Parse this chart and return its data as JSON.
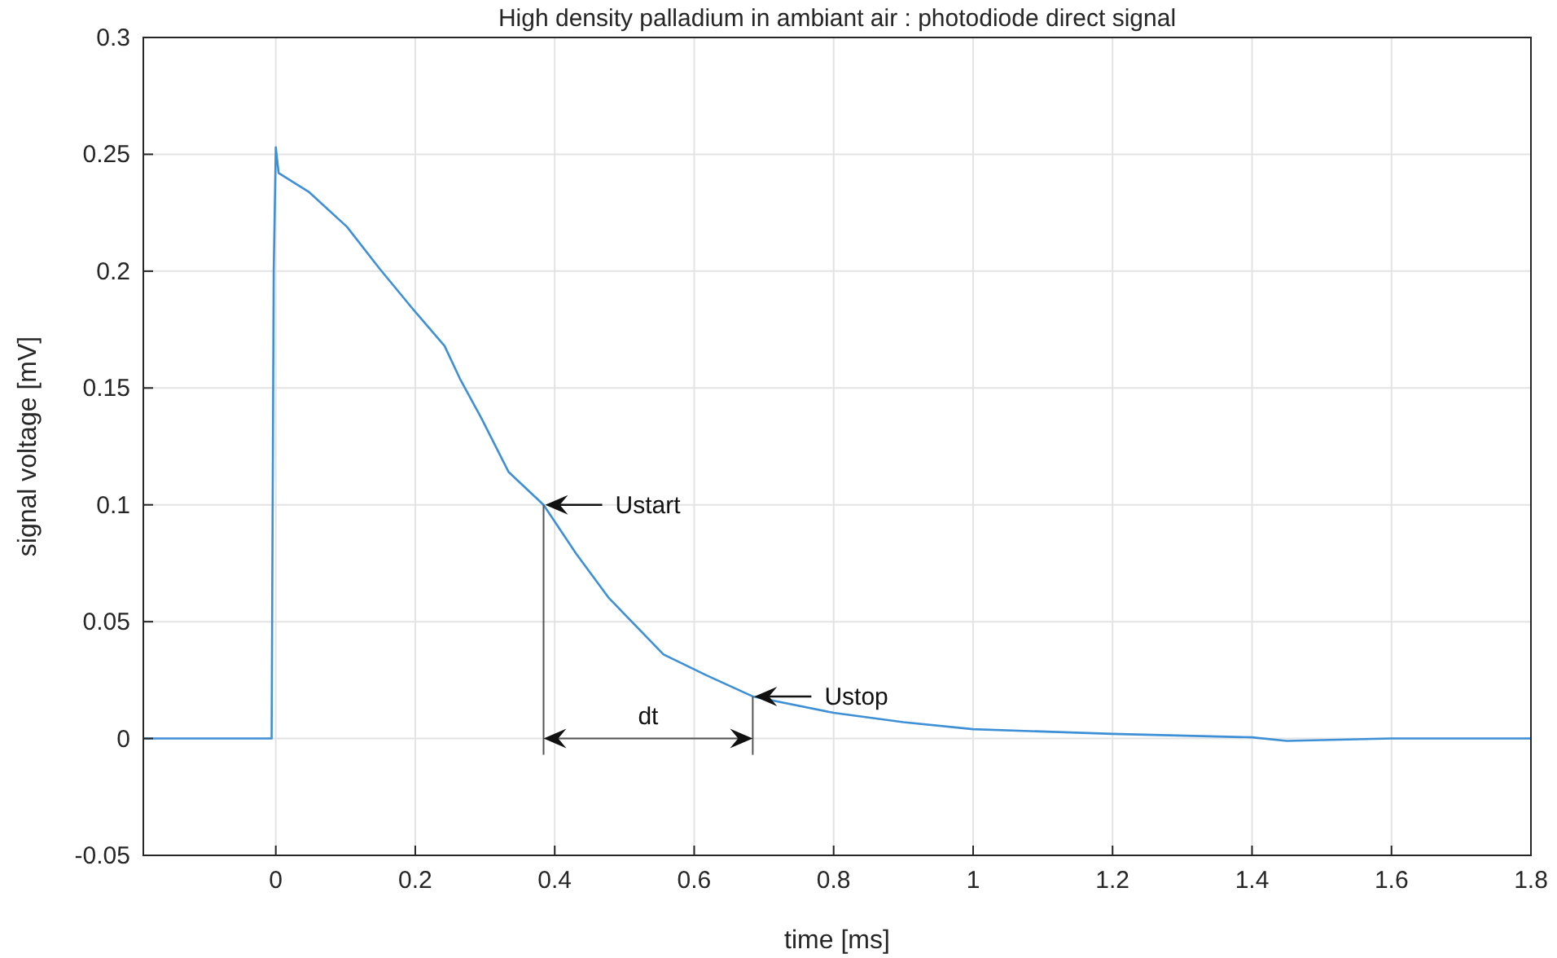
{
  "chart_data": {
    "type": "line",
    "title": "High density palladium in ambiant air : photodiode direct signal",
    "xlabel": "time [ms]",
    "ylabel": "signal voltage [mV]",
    "x": [
      -0.19,
      -0.1,
      -0.02,
      -0.006,
      -0.003,
      0.0,
      0.004,
      0.047,
      0.102,
      0.149,
      0.196,
      0.242,
      0.264,
      0.295,
      0.334,
      0.384,
      0.431,
      0.478,
      0.556,
      0.618,
      0.684,
      0.8,
      0.9,
      1.0,
      1.2,
      1.4,
      1.45,
      1.6,
      1.8
    ],
    "series": [
      {
        "color": "#3d8fd6",
        "values": [
          0,
          0,
          0,
          0,
          0.2,
          0.253,
          0.242,
          0.234,
          0.219,
          0.201,
          0.184,
          0.168,
          0.154,
          0.137,
          0.114,
          0.1,
          0.079,
          0.06,
          0.036,
          0.027,
          0.018,
          0.011,
          0.007,
          0.004,
          0.002,
          0.0005,
          -0.001,
          0,
          0
        ]
      }
    ],
    "xlim": [
      -0.19,
      1.8
    ],
    "xticks": [
      0,
      0.2,
      0.4,
      0.6,
      0.8,
      1,
      1.2,
      1.4,
      1.6,
      1.8
    ],
    "ylim": [
      -0.05,
      0.3
    ],
    "yticks": [
      -0.05,
      0,
      0.05,
      0.1,
      0.15,
      0.2,
      0.25,
      0.3
    ],
    "grid": true,
    "marker": "none",
    "line_style": "solid",
    "annotations": [
      {
        "text": "Ustart",
        "x": 0.384,
        "y": 0.1
      },
      {
        "text": "Ustop",
        "x": 0.684,
        "y": 0.018
      },
      "dt"
    ]
  }
}
